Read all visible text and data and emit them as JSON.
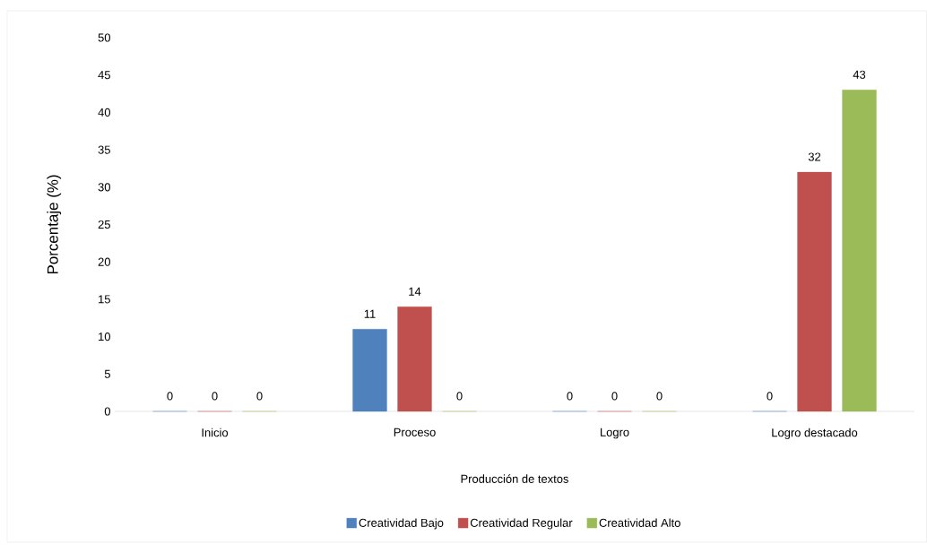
{
  "chart_data": {
    "type": "bar",
    "xlabel": "Producción de textos",
    "ylabel": "Porcentaje (%)",
    "categories": [
      "Inicio",
      "Proceso",
      "Logro",
      "Logro destacado"
    ],
    "series": [
      {
        "name": "Creatividad Bajo",
        "color": "#4f81bd",
        "values": [
          0,
          11,
          0,
          0
        ]
      },
      {
        "name": "Creatividad Regular",
        "color": "#c0504d",
        "values": [
          0,
          14,
          0,
          32
        ]
      },
      {
        "name": "Creatividad Alto",
        "color": "#9bbb59",
        "values": [
          0,
          0,
          0,
          43
        ]
      }
    ],
    "ylim": [
      0,
      50
    ],
    "yticks": [
      0,
      5,
      10,
      15,
      20,
      25,
      30,
      35,
      40,
      45,
      50
    ],
    "data_labels": true,
    "legend": "bottom",
    "grid": false
  }
}
